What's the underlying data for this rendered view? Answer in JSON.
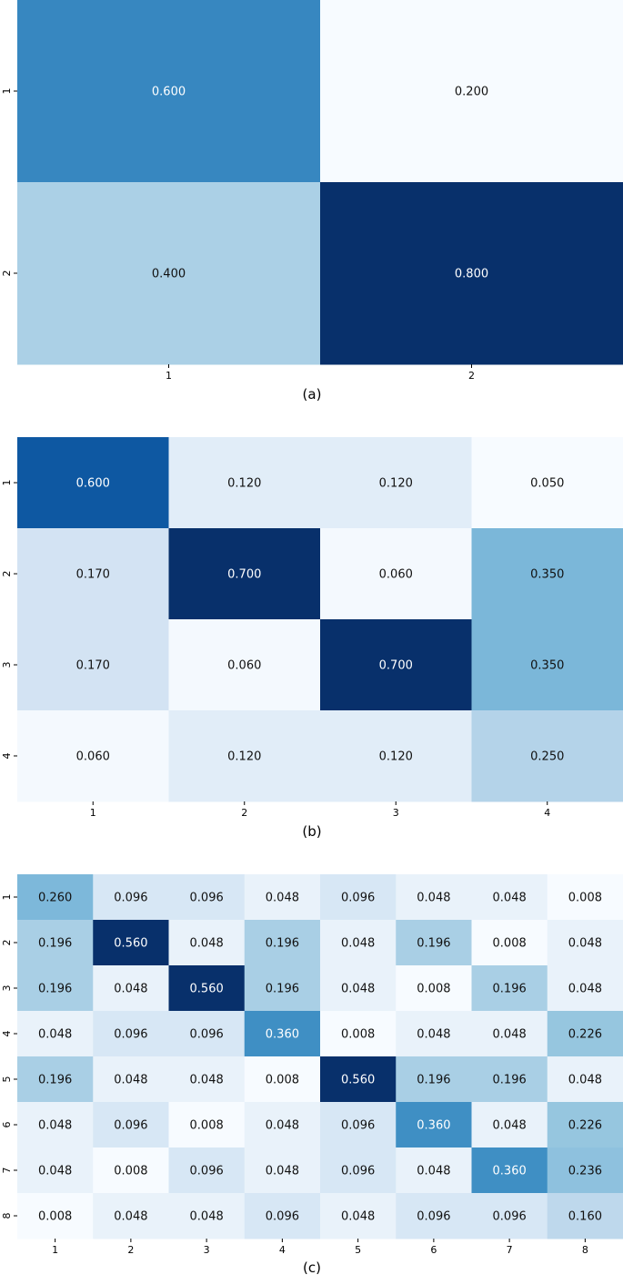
{
  "chart_data": [
    {
      "type": "heatmap",
      "caption": "(a)",
      "row_labels": [
        "1",
        "2"
      ],
      "col_labels": [
        "1",
        "2"
      ],
      "values": [
        [
          0.6,
          0.2
        ],
        [
          0.4,
          0.8
        ]
      ],
      "value_format": "3 decimals",
      "colorscale": "Blues"
    },
    {
      "type": "heatmap",
      "caption": "(b)",
      "row_labels": [
        "1",
        "2",
        "3",
        "4"
      ],
      "col_labels": [
        "1",
        "2",
        "3",
        "4"
      ],
      "values": [
        [
          0.6,
          0.12,
          0.12,
          0.05
        ],
        [
          0.17,
          0.7,
          0.06,
          0.35
        ],
        [
          0.17,
          0.06,
          0.7,
          0.35
        ],
        [
          0.06,
          0.12,
          0.12,
          0.25
        ]
      ],
      "value_format": "3 decimals",
      "colorscale": "Blues"
    },
    {
      "type": "heatmap",
      "caption": "(c)",
      "row_labels": [
        "1",
        "2",
        "3",
        "4",
        "5",
        "6",
        "7",
        "8"
      ],
      "col_labels": [
        "1",
        "2",
        "3",
        "4",
        "5",
        "6",
        "7",
        "8"
      ],
      "values": [
        [
          0.26,
          0.096,
          0.096,
          0.048,
          0.096,
          0.048,
          0.048,
          0.008
        ],
        [
          0.196,
          0.56,
          0.048,
          0.196,
          0.048,
          0.196,
          0.008,
          0.048
        ],
        [
          0.196,
          0.048,
          0.56,
          0.196,
          0.048,
          0.008,
          0.196,
          0.048
        ],
        [
          0.048,
          0.096,
          0.096,
          0.36,
          0.008,
          0.048,
          0.048,
          0.226
        ],
        [
          0.196,
          0.048,
          0.048,
          0.008,
          0.56,
          0.196,
          0.196,
          0.048
        ],
        [
          0.048,
          0.096,
          0.008,
          0.048,
          0.096,
          0.36,
          0.048,
          0.226
        ],
        [
          0.048,
          0.008,
          0.096,
          0.048,
          0.096,
          0.048,
          0.36,
          0.236
        ],
        [
          0.008,
          0.048,
          0.048,
          0.096,
          0.048,
          0.096,
          0.096,
          0.16
        ]
      ],
      "value_format": "3 decimals",
      "colorscale": "Blues"
    }
  ]
}
